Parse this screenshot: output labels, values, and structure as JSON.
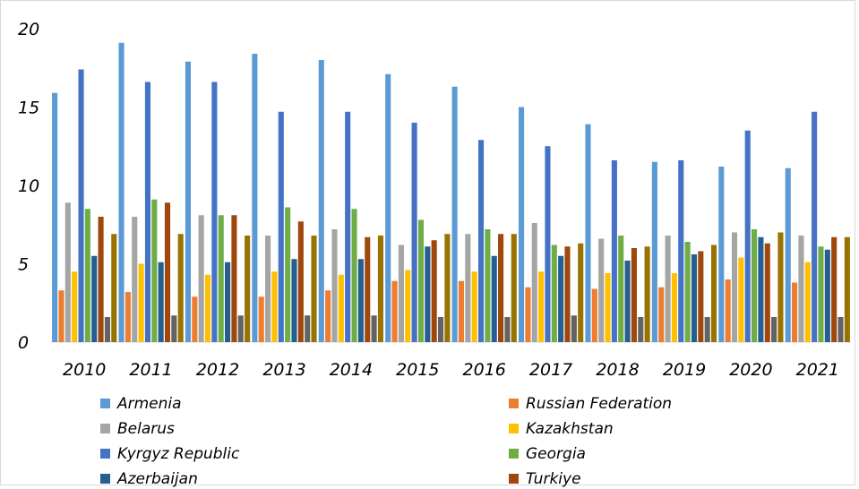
{
  "chart_data": {
    "type": "bar",
    "title": "",
    "xlabel": "",
    "ylabel": "",
    "ylim": [
      0,
      20
    ],
    "yticks": [
      "0",
      "5",
      "10",
      "15",
      "20"
    ],
    "grid": false,
    "legend_position": "bottom",
    "categories": [
      "2010",
      "2011",
      "2012",
      "2013",
      "2014",
      "2015",
      "2016",
      "2017",
      "2018",
      "2019",
      "2020",
      "2021"
    ],
    "series": [
      {
        "name": "Armenia",
        "color": "#5b9bd5",
        "values": [
          15.9,
          19.1,
          17.9,
          18.4,
          18.0,
          17.1,
          16.3,
          15.0,
          13.9,
          11.5,
          11.2,
          11.1
        ]
      },
      {
        "name": "Russian Federation",
        "color": "#ed7d31",
        "values": [
          3.3,
          3.2,
          2.9,
          2.9,
          3.3,
          3.9,
          3.9,
          3.5,
          3.4,
          3.5,
          4.0,
          3.8
        ]
      },
      {
        "name": "Belarus",
        "color": "#a5a5a5",
        "values": [
          8.9,
          8.0,
          8.1,
          6.8,
          7.2,
          6.2,
          6.9,
          7.6,
          6.6,
          6.8,
          7.0,
          6.8
        ]
      },
      {
        "name": "Kazakhstan",
        "color": "#ffc000",
        "values": [
          4.5,
          5.0,
          4.3,
          4.5,
          4.3,
          4.6,
          4.5,
          4.5,
          4.4,
          4.4,
          5.4,
          5.1
        ]
      },
      {
        "name": "Kyrgyz Republic",
        "color": "#4472c4",
        "values": [
          17.4,
          16.6,
          16.6,
          14.7,
          14.7,
          14.0,
          12.9,
          12.5,
          11.6,
          11.6,
          13.5,
          14.7
        ]
      },
      {
        "name": "Georgia",
        "color": "#70ad47",
        "values": [
          8.5,
          9.1,
          8.1,
          8.6,
          8.5,
          7.8,
          7.2,
          6.2,
          6.8,
          6.4,
          7.2,
          6.1
        ]
      },
      {
        "name": "Azerbaijan",
        "color": "#255e91",
        "values": [
          5.5,
          5.1,
          5.1,
          5.3,
          5.3,
          6.1,
          5.5,
          5.5,
          5.2,
          5.6,
          6.7,
          5.9
        ]
      },
      {
        "name": "Turkiye",
        "color": "#9e480e",
        "values": [
          8.0,
          8.9,
          8.1,
          7.7,
          6.7,
          6.5,
          6.9,
          6.1,
          6.0,
          5.8,
          6.3,
          6.7
        ]
      },
      {
        "name": "",
        "color": "#636363",
        "values": [
          1.6,
          1.7,
          1.7,
          1.7,
          1.7,
          1.6,
          1.6,
          1.7,
          1.6,
          1.6,
          1.6,
          1.6
        ]
      },
      {
        "name": "",
        "color": "#997300",
        "values": [
          6.9,
          6.9,
          6.8,
          6.8,
          6.8,
          6.9,
          6.9,
          6.3,
          6.1,
          6.2,
          7.0,
          6.7
        ]
      }
    ]
  }
}
